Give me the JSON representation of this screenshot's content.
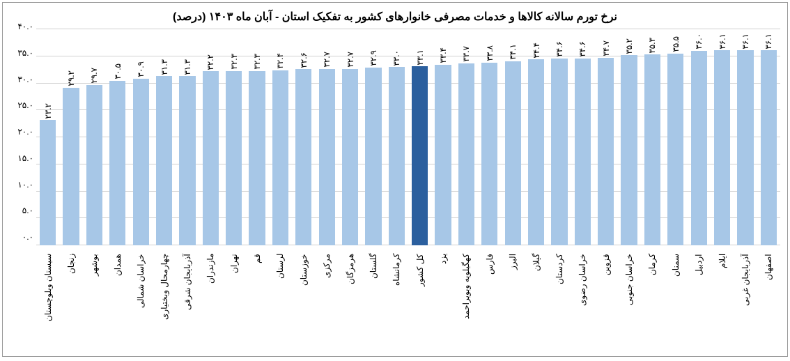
{
  "chart": {
    "type": "bar",
    "title": "نرخ تورم سالانه کالاها و خدمات مصرفی خانوارهای کشور به تفکیک استان - آبان ماه ۱۴۰۳ (درصد)",
    "title_fontsize": 16,
    "background_color": "#ffffff",
    "border_color": "#999999",
    "grid_color": "#d0d0d0",
    "bar_color_default": "#a7c7e7",
    "bar_color_highlight": "#2b5f9e",
    "bar_width": 0.7,
    "label_fontsize": 12,
    "ylim": [
      0,
      40
    ],
    "ytick_step": 5,
    "yticks": [
      "۰.۰",
      "۵.۰",
      "۱۰.۰",
      "۱۵.۰",
      "۲۰.۰",
      "۲۵.۰",
      "۳۰.۰",
      "۳۵.۰",
      "۴۰.۰"
    ],
    "categories": [
      "سیستان وبلوچستان",
      "زنجان",
      "بوشهر",
      "همدان",
      "خراسان شمالی",
      "چهارمحال وبختیاری",
      "آذربایجان شرقی",
      "مازندران",
      "تهران",
      "قم",
      "لرستان",
      "خوزستان",
      "مرکزی",
      "هرمزگان",
      "گلستان",
      "کرمانشاه",
      "کل کشور",
      "یزد",
      "کهگیلویه وبویراحمد",
      "فارس",
      "البرز",
      "گیلان",
      "کردستان",
      "خراسان رضوی",
      "قزوین",
      "خراسان جنوبی",
      "کرمان",
      "سمنان",
      "اردبیل",
      "ایلام",
      "آذربایجان غربی",
      "اصفهان"
    ],
    "values": [
      23.2,
      29.2,
      29.7,
      30.5,
      30.9,
      31.3,
      31.3,
      32.2,
      32.3,
      32.3,
      32.4,
      32.6,
      32.7,
      32.7,
      32.9,
      33.0,
      33.1,
      33.4,
      33.7,
      33.8,
      34.1,
      34.4,
      34.6,
      34.6,
      34.7,
      35.2,
      35.3,
      35.5,
      36.0,
      36.1,
      36.1,
      36.1
    ],
    "value_labels": [
      "۲۳.۲",
      "۲۹.۲",
      "۲۹.۷",
      "۳۰.۵",
      "۳۰.۹",
      "۳۱.۳",
      "۳۱.۳",
      "۳۲.۲",
      "۳۲.۳",
      "۳۲.۳",
      "۳۲.۴",
      "۳۲.۶",
      "۳۲.۷",
      "۳۲.۷",
      "۳۲.۹",
      "۳۳.۰",
      "۳۳.۱",
      "۳۳.۴",
      "۳۳.۷",
      "۳۳.۸",
      "۳۴.۱",
      "۳۴.۴",
      "۳۴.۶",
      "۳۴.۶",
      "۳۴.۷",
      "۳۵.۲",
      "۳۵.۳",
      "۳۵.۵",
      "۳۶.۰",
      "۳۶.۱",
      "۳۶.۱",
      "۳۶.۱"
    ],
    "highlight_index": 16
  }
}
